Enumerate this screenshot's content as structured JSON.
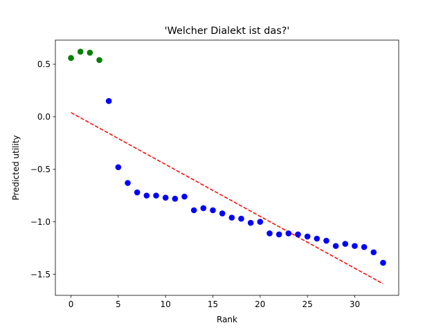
{
  "chart_data": {
    "type": "scatter",
    "title": "'Welcher Dialekt ist das?'",
    "xlabel": "Rank",
    "ylabel": "Predicted utility",
    "xlim": [
      -1.65,
      34.65
    ],
    "ylim": [
      -1.7,
      0.73
    ],
    "xticks": [
      0,
      5,
      10,
      15,
      20,
      25,
      30
    ],
    "yticks": [
      0.5,
      0.0,
      -0.5,
      -1.0,
      -1.5
    ],
    "xtick_labels": [
      "0",
      "5",
      "10",
      "15",
      "20",
      "25",
      "30"
    ],
    "ytick_labels": [
      "0.5",
      "0.0",
      "−0.5",
      "−1.0",
      "−1.5"
    ],
    "grid": false,
    "series": [
      {
        "color": "#008000",
        "x": [
          0,
          1,
          2,
          3
        ],
        "y": [
          0.56,
          0.62,
          0.61,
          0.54
        ]
      },
      {
        "color": "#0000ff",
        "x": [
          4,
          5,
          6,
          7,
          8,
          9,
          10,
          11,
          12,
          13,
          14,
          15,
          16,
          17,
          18,
          19,
          20,
          21,
          22,
          23,
          24,
          25,
          26,
          27,
          28,
          29,
          30,
          31,
          32,
          33
        ],
        "y": [
          0.15,
          -0.48,
          -0.63,
          -0.72,
          -0.75,
          -0.75,
          -0.77,
          -0.78,
          -0.76,
          -0.89,
          -0.87,
          -0.89,
          -0.92,
          -0.96,
          -0.97,
          -1.01,
          -1.0,
          -1.11,
          -1.12,
          -1.11,
          -1.12,
          -1.14,
          -1.16,
          -1.18,
          -1.23,
          -1.21,
          -1.23,
          -1.24,
          -1.29,
          -1.39
        ]
      }
    ],
    "trendline": {
      "style": "dashed",
      "color": "#ff0000",
      "x": [
        0,
        33
      ],
      "y": [
        0.04,
        -1.59
      ]
    }
  }
}
